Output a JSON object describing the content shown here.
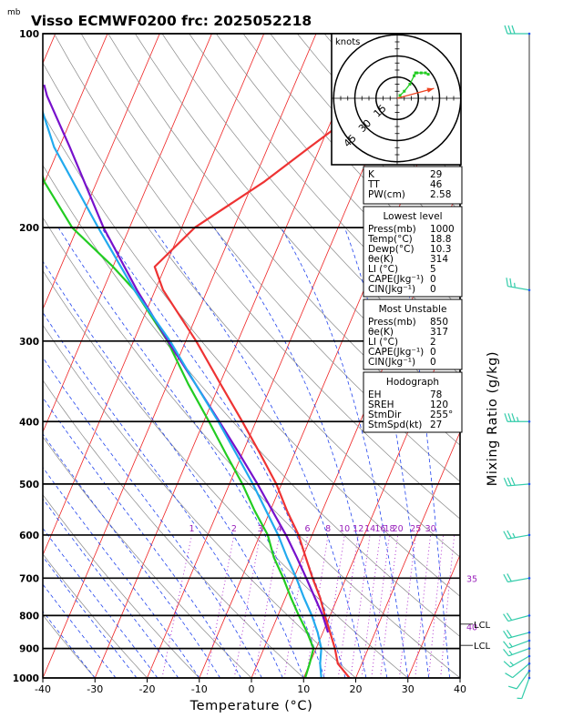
{
  "title": "Visso ECMWF0200  frc: 2025052218",
  "p_unit": "mb",
  "chart_data": {
    "type": "line",
    "xlabel": "Temperature (°C)",
    "ylabel": "Mixing Ratio (g/kg)",
    "xlim": [
      -40,
      40
    ],
    "plim": [
      1000,
      100
    ],
    "x_ticks": [
      -40,
      -30,
      -20,
      -10,
      0,
      10,
      20,
      30,
      40
    ],
    "p_ticks": [
      1000,
      900,
      800,
      700,
      600,
      500,
      400,
      300,
      200,
      100
    ],
    "mixing_ratio_labels": [
      "1",
      "2",
      "3",
      "4",
      "6",
      "8",
      "10",
      "12",
      "14",
      "16",
      "18",
      "20",
      "25",
      "30",
      "35",
      "40"
    ],
    "mixing_ratio_values": [
      1,
      2,
      3,
      4,
      6,
      8,
      10,
      12,
      14,
      16,
      18,
      20,
      25,
      30,
      35,
      40
    ],
    "series": [
      {
        "name": "Temperature",
        "color": "#ee3333",
        "points": [
          [
            1000,
            18.8
          ],
          [
            950,
            15.4
          ],
          [
            900,
            13.6
          ],
          [
            850,
            11.4
          ],
          [
            800,
            9.0
          ],
          [
            750,
            6.6
          ],
          [
            700,
            3.6
          ],
          [
            650,
            0.6
          ],
          [
            600,
            -2.6
          ],
          [
            550,
            -6.8
          ],
          [
            500,
            -11.0
          ],
          [
            450,
            -16.4
          ],
          [
            400,
            -22.6
          ],
          [
            350,
            -29.8
          ],
          [
            300,
            -38.0
          ],
          [
            250,
            -48.5
          ],
          [
            230,
            -52.0
          ],
          [
            200,
            -47.5
          ],
          [
            170,
            -38.0
          ],
          [
            150,
            -32.0
          ],
          [
            125,
            -23.0
          ],
          [
            100,
            -13.0
          ]
        ]
      },
      {
        "name": "Dewpoint",
        "color": "#22cc22",
        "points": [
          [
            1000,
            10.3
          ],
          [
            950,
            10.0
          ],
          [
            900,
            9.5
          ],
          [
            850,
            7.0
          ],
          [
            800,
            4.0
          ],
          [
            750,
            1.0
          ],
          [
            700,
            -2.0
          ],
          [
            650,
            -5.5
          ],
          [
            600,
            -8.5
          ],
          [
            550,
            -13.0
          ],
          [
            500,
            -17.5
          ],
          [
            450,
            -23.0
          ],
          [
            400,
            -29.0
          ],
          [
            350,
            -36.0
          ],
          [
            300,
            -43.5
          ],
          [
            250,
            -54.0
          ],
          [
            230,
            -60.0
          ],
          [
            200,
            -71.0
          ],
          [
            170,
            -80.0
          ],
          [
            150,
            -85.0
          ],
          [
            125,
            -91.0
          ],
          [
            100,
            -100.0
          ]
        ]
      },
      {
        "name": "Parcel",
        "color": "#7711cc",
        "points": [
          [
            850,
            11.0
          ],
          [
            800,
            8.6
          ],
          [
            750,
            5.6
          ],
          [
            700,
            2.4
          ],
          [
            650,
            -1.1
          ],
          [
            600,
            -5.0
          ],
          [
            550,
            -9.6
          ],
          [
            500,
            -14.6
          ],
          [
            450,
            -20.4
          ],
          [
            400,
            -27.0
          ],
          [
            350,
            -34.6
          ],
          [
            300,
            -43.4
          ],
          [
            250,
            -53.5
          ],
          [
            200,
            -65.0
          ],
          [
            150,
            -78.0
          ],
          [
            125,
            -86.5
          ],
          [
            120,
            -88.0
          ]
        ]
      },
      {
        "name": "Wet-bulb",
        "color": "#22aaee",
        "points": [
          [
            1000,
            13.4
          ],
          [
            950,
            12.0
          ],
          [
            900,
            11.0
          ],
          [
            850,
            9.0
          ],
          [
            800,
            6.5
          ],
          [
            750,
            3.5
          ],
          [
            700,
            0.5
          ],
          [
            650,
            -3.0
          ],
          [
            600,
            -6.5
          ],
          [
            550,
            -10.8
          ],
          [
            500,
            -15.5
          ],
          [
            450,
            -21.0
          ],
          [
            400,
            -27.2
          ],
          [
            350,
            -34.6
          ],
          [
            300,
            -43.0
          ],
          [
            250,
            -54.0
          ],
          [
            200,
            -66.0
          ],
          [
            150,
            -81.0
          ],
          [
            120,
            -90.0
          ],
          [
            100,
            -96.0
          ]
        ]
      }
    ],
    "lcl_levels": [
      {
        "p": 825,
        "label": "LCL"
      },
      {
        "p": 890,
        "label": "LCL"
      }
    ],
    "wind_profile": [
      {
        "p": 1000,
        "dir": 200,
        "spd": 5
      },
      {
        "p": 975,
        "dir": 215,
        "spd": 10
      },
      {
        "p": 950,
        "dir": 230,
        "spd": 10
      },
      {
        "p": 925,
        "dir": 240,
        "spd": 15
      },
      {
        "p": 900,
        "dir": 250,
        "spd": 15
      },
      {
        "p": 875,
        "dir": 250,
        "spd": 15
      },
      {
        "p": 850,
        "dir": 255,
        "spd": 20
      },
      {
        "p": 800,
        "dir": 255,
        "spd": 20
      },
      {
        "p": 700,
        "dir": 260,
        "spd": 20
      },
      {
        "p": 600,
        "dir": 260,
        "spd": 25
      },
      {
        "p": 500,
        "dir": 265,
        "spd": 30
      },
      {
        "p": 400,
        "dir": 270,
        "spd": 35
      },
      {
        "p": 250,
        "dir": 280,
        "spd": 25
      },
      {
        "p": 100,
        "dir": 270,
        "spd": 30
      }
    ],
    "hodograph": {
      "unit_label": "knots",
      "ring_labels": [
        "15",
        "30",
        "45"
      ],
      "rings": [
        15,
        30,
        45
      ],
      "trace": [
        [
          2,
          2
        ],
        [
          5,
          5
        ],
        [
          9,
          10
        ],
        [
          12,
          16
        ],
        [
          13,
          18
        ],
        [
          14,
          18
        ],
        [
          17,
          18
        ],
        [
          20,
          18
        ],
        [
          22,
          17
        ]
      ],
      "storm_motion": {
        "dir": 255,
        "spd": 27
      }
    }
  },
  "indices": {
    "block1": [
      {
        "label": "K",
        "value": "29"
      },
      {
        "label": "TT",
        "value": "46"
      },
      {
        "label": "PW(cm)",
        "value": "2.58"
      }
    ],
    "lowest": {
      "heading": "Lowest level",
      "rows": [
        {
          "label": "Press(mb)",
          "value": "1000"
        },
        {
          "label": "Temp(°C)",
          "value": "18.8"
        },
        {
          "label": "Dewp(°C)",
          "value": "10.3"
        },
        {
          "label": "θe(K)",
          "value": "314"
        },
        {
          "label": "LI (°C)",
          "value": "5"
        },
        {
          "label": "CAPE(Jkg⁻¹)",
          "value": "0"
        },
        {
          "label": "CIN(Jkg⁻¹)",
          "value": "0"
        }
      ]
    },
    "most_unstable": {
      "heading": "Most Unstable",
      "rows": [
        {
          "label": "Press(mb)",
          "value": "850"
        },
        {
          "label": "θe(K)",
          "value": "317"
        },
        {
          "label": "LI (°C)",
          "value": "2"
        },
        {
          "label": "CAPE(Jkg⁻¹)",
          "value": "0"
        },
        {
          "label": "CIN(Jkg⁻¹)",
          "value": "0"
        }
      ]
    },
    "hodograph": {
      "heading": "Hodograph",
      "rows": [
        {
          "label": "EH",
          "value": "78"
        },
        {
          "label": "SREH",
          "value": "120"
        },
        {
          "label": "StmDir",
          "value": "255°"
        },
        {
          "label": "StmSpd(kt)",
          "value": "27"
        }
      ]
    }
  },
  "colors": {
    "isotherm": "#ee2222",
    "dry_adiabat": "#888888",
    "moist_adiabat": "#2244ee",
    "mixing_ratio": "#aa22cc",
    "mixing_label": "#9922bb",
    "temperature": "#ee3333",
    "dewpoint": "#22cc22",
    "parcel": "#7711cc",
    "wetbulb": "#22aaee",
    "wind": "#33ccaa"
  }
}
